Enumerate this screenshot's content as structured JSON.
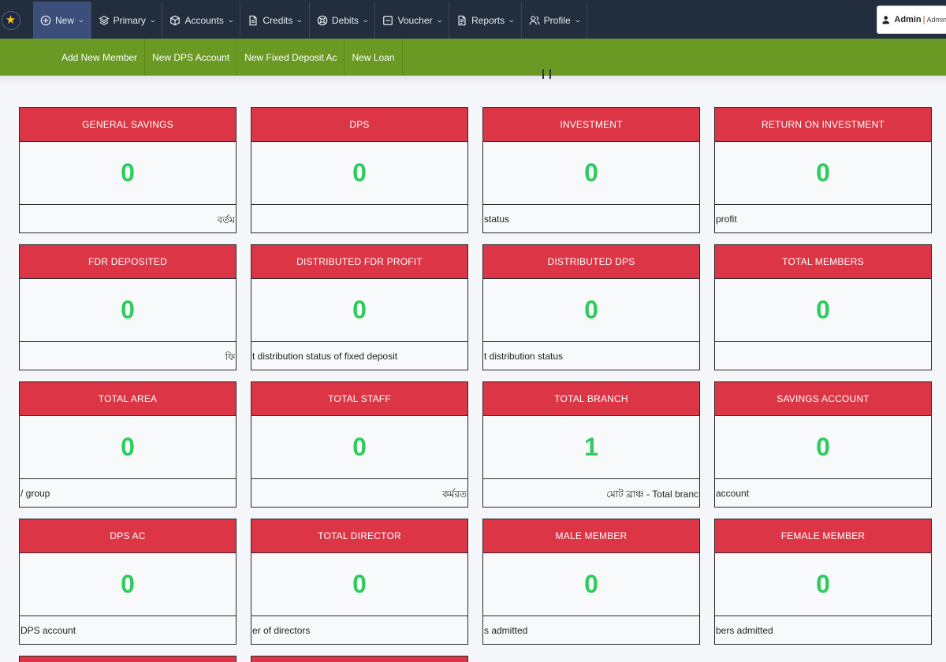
{
  "nav": {
    "menu": [
      {
        "label": "New",
        "icon": "plus-circle-icon"
      },
      {
        "label": "Primary",
        "icon": "layers-icon"
      },
      {
        "label": "Accounts",
        "icon": "box-icon"
      },
      {
        "label": "Credits",
        "icon": "file-icon"
      },
      {
        "label": "Debits",
        "icon": "life-buoy-icon"
      },
      {
        "label": "Voucher",
        "icon": "minus-square-icon"
      },
      {
        "label": "Reports",
        "icon": "file-text-icon"
      },
      {
        "label": "Profile",
        "icon": "users-icon"
      }
    ],
    "user": {
      "name": "Admin",
      "separator": "|",
      "role": "Admin"
    }
  },
  "subnav": [
    "Add New Member",
    "New DPS Account",
    "New Fixed Deposit Ac",
    "New Loan"
  ],
  "cards": [
    {
      "title": "GENERAL SAVINGS",
      "value": "0",
      "footer": "বর্তম",
      "foot_align": "r"
    },
    {
      "title": "DPS",
      "value": "0",
      "footer": "",
      "foot_align": "l"
    },
    {
      "title": "INVESTMENT",
      "value": "0",
      "footer": "status",
      "foot_align": "l"
    },
    {
      "title": "RETURN ON INVESTMENT",
      "value": "0",
      "footer": "profit",
      "foot_align": "l"
    },
    {
      "title": "FDR DEPOSITED",
      "value": "0",
      "footer": "ফি",
      "foot_align": "r"
    },
    {
      "title": "DISTRIBUTED FDR PROFIT",
      "value": "0",
      "footer": "t distribution status of fixed deposit",
      "foot_align": "l"
    },
    {
      "title": "DISTRIBUTED DPS",
      "value": "0",
      "footer": "t distribution status",
      "foot_align": "l"
    },
    {
      "title": "TOTAL MEMBERS",
      "value": "0",
      "footer": "",
      "foot_align": "l"
    },
    {
      "title": "TOTAL AREA",
      "value": "0",
      "footer": "/ group",
      "foot_align": "l"
    },
    {
      "title": "TOTAL STAFF",
      "value": "0",
      "footer": "কর্মরত",
      "foot_align": "r"
    },
    {
      "title": "TOTAL BRANCH",
      "value": "1",
      "footer": "মোট ব্রাঞ্চ - Total branc",
      "foot_align": "r"
    },
    {
      "title": "SAVINGS ACCOUNT",
      "value": "0",
      "footer": "account",
      "foot_align": "l"
    },
    {
      "title": "DPS AC",
      "value": "0",
      "footer": "DPS account",
      "foot_align": "l"
    },
    {
      "title": "TOTAL DIRECTOR",
      "value": "0",
      "footer": "er of directors",
      "foot_align": "l"
    },
    {
      "title": "MALE MEMBER",
      "value": "0",
      "footer": "s admitted",
      "foot_align": "l"
    },
    {
      "title": "FEMALE MEMBER",
      "value": "0",
      "footer": "bers admitted",
      "foot_align": "l"
    }
  ],
  "colors": {
    "topnav": "#222d3d",
    "subnav": "#6a9a24",
    "card_header": "#dc3545",
    "value": "#2ecc5f"
  }
}
